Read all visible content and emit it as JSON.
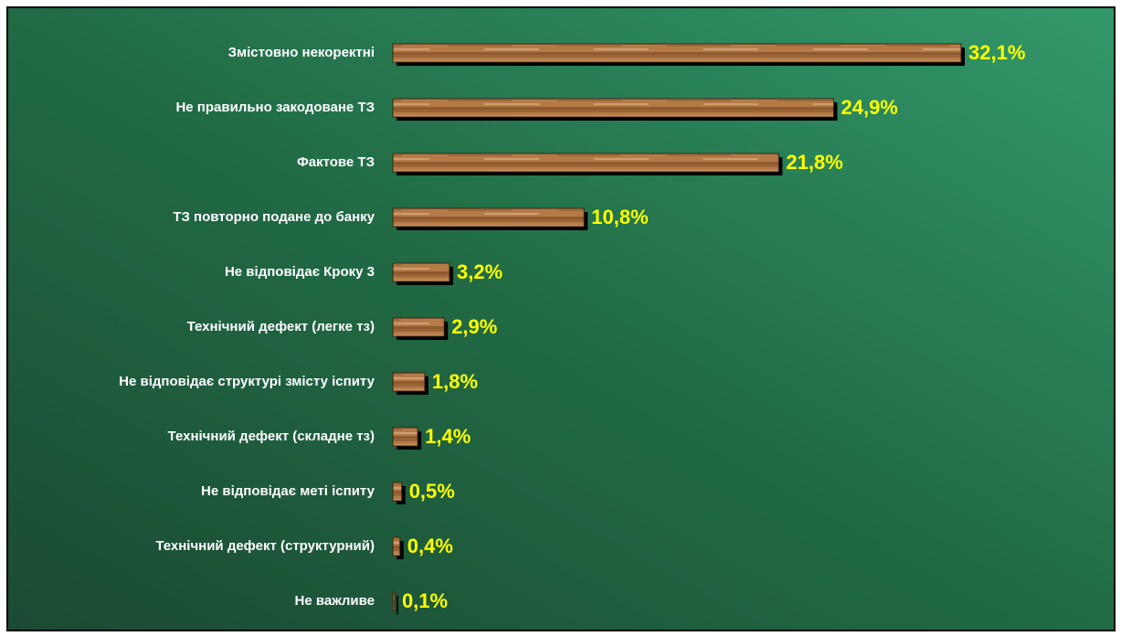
{
  "chart_data": {
    "type": "bar",
    "orientation": "horizontal",
    "categories": [
      "Змістовно некоректні",
      "Не правильно закодоване ТЗ",
      "Фактове ТЗ",
      "ТЗ повторно подане до банку",
      "Не відповідає Кроку 3",
      "Технічний дефект (легке тз)",
      "Не відповідає структурі змісту іспиту",
      "Технічний дефект (складне тз)",
      "Не відповідає меті іспиту",
      "Технічний дефект (структурний)",
      "Не важливе"
    ],
    "values": [
      32.1,
      24.9,
      21.8,
      10.8,
      3.2,
      2.9,
      1.8,
      1.4,
      0.5,
      0.4,
      0.1
    ],
    "value_labels": [
      "32,1%",
      "24,9%",
      "21,8%",
      "10,8%",
      "3,2%",
      "2,9%",
      "1,8%",
      "1,4%",
      "0,5%",
      "0,4%",
      "0,1%"
    ],
    "color": "#b57b47"
  }
}
